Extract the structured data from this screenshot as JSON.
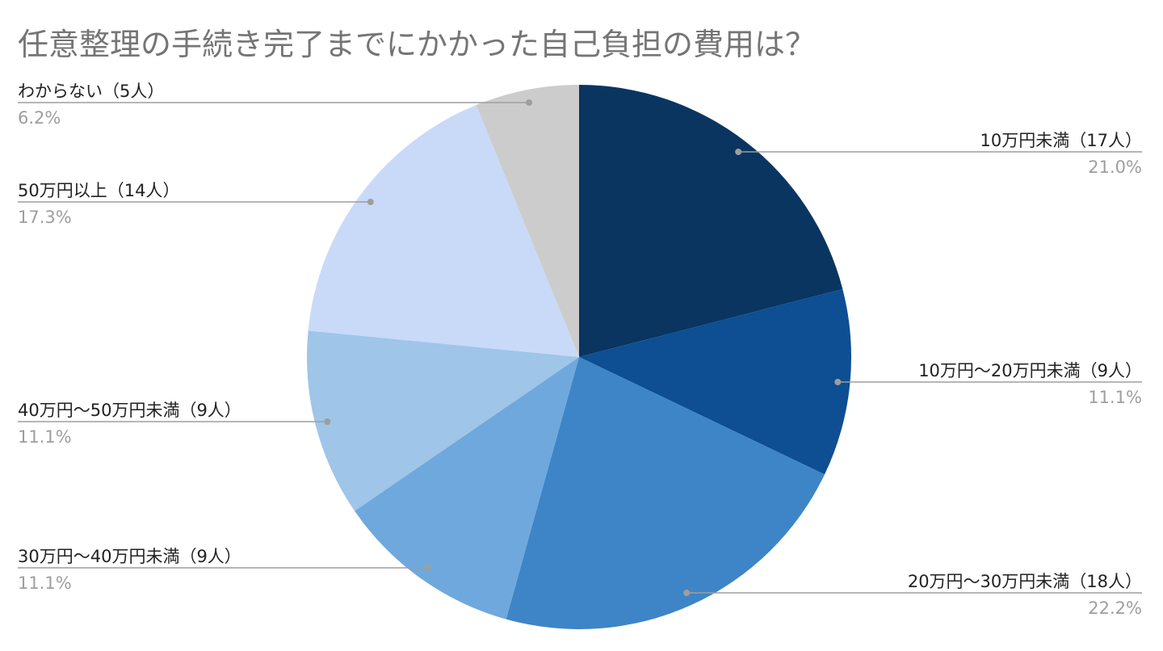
{
  "chart_data": {
    "type": "pie",
    "title": "任意整理の手続き完了までにかかった自己負担の費用は？",
    "slices": [
      {
        "label": "10万円未満（17人）",
        "count": 17,
        "percent": "21.0%",
        "color": "#0a3561"
      },
      {
        "label": "10万円～20万円未満（9人）",
        "count": 9,
        "percent": "11.1%",
        "color": "#0e4e92"
      },
      {
        "label": "20万円～30万円未満（18人）",
        "count": 18,
        "percent": "22.2%",
        "color": "#3d85c6"
      },
      {
        "label": "30万円～40万円未満（9人）",
        "count": 9,
        "percent": "11.1%",
        "color": "#6fa8dc"
      },
      {
        "label": "40万円～50万円未満（9人）",
        "count": 9,
        "percent": "11.1%",
        "color": "#9fc5e8"
      },
      {
        "label": "50万円以上（14人）",
        "count": 14,
        "percent": "17.3%",
        "color": "#c9daf8"
      },
      {
        "label": "わからない（5人）",
        "count": 5,
        "percent": "6.2%",
        "color": "#cccccc"
      }
    ],
    "legend": "leader-line labels"
  }
}
